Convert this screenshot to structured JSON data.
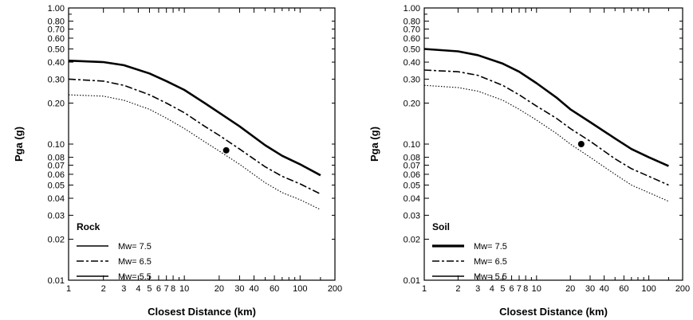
{
  "chart_data": [
    {
      "type": "line",
      "panel_label": "Rock",
      "xlabel": "Closest Distance (km)",
      "ylabel": "Pga (g)",
      "xscale": "log",
      "yscale": "log",
      "xlim": [
        1,
        200
      ],
      "ylim": [
        0.01,
        1.0
      ],
      "x_ticks": [
        1,
        2,
        3,
        4,
        5,
        6,
        7,
        8,
        10,
        20,
        30,
        40,
        60,
        100,
        200
      ],
      "x_tick_labels": [
        "1",
        "2",
        "3",
        "4",
        "5",
        "6",
        "7",
        "8",
        "10",
        "20",
        "30",
        "40",
        "60",
        "100",
        "200"
      ],
      "y_ticks": [
        0.01,
        0.02,
        0.03,
        0.04,
        0.05,
        0.06,
        0.07,
        0.08,
        0.1,
        0.2,
        0.3,
        0.4,
        0.5,
        0.6,
        0.7,
        0.8,
        1.0
      ],
      "y_tick_labels": [
        "0.01",
        "0.02",
        "0.03",
        "0.04",
        "0.05",
        "0.06",
        "0.07",
        "0.08",
        "0.10",
        "0.20",
        "0.30",
        "0.40",
        "0.50",
        "0.60",
        "0.70",
        "0.80",
        "1.00"
      ],
      "legend_position": "bottom-left",
      "series": [
        {
          "name": "Mw= 7.5",
          "style": "solid-thick",
          "x": [
            1,
            2,
            3,
            5,
            7,
            10,
            15,
            20,
            30,
            50,
            70,
            100,
            150
          ],
          "y": [
            0.41,
            0.4,
            0.38,
            0.33,
            0.29,
            0.25,
            0.2,
            0.17,
            0.135,
            0.098,
            0.082,
            0.071,
            0.059
          ]
        },
        {
          "name": "Mw= 6.5",
          "style": "dashed",
          "x": [
            1,
            2,
            3,
            5,
            7,
            10,
            15,
            20,
            30,
            50,
            70,
            100,
            150
          ],
          "y": [
            0.3,
            0.29,
            0.27,
            0.23,
            0.2,
            0.17,
            0.135,
            0.116,
            0.092,
            0.068,
            0.058,
            0.051,
            0.043
          ]
        },
        {
          "name": "Mw= 5.5",
          "style": "dotted",
          "x": [
            1,
            2,
            3,
            5,
            7,
            10,
            15,
            20,
            30,
            50,
            70,
            100,
            150
          ],
          "y": [
            0.23,
            0.225,
            0.21,
            0.18,
            0.155,
            0.13,
            0.104,
            0.089,
            0.071,
            0.052,
            0.044,
            0.039,
            0.033
          ]
        }
      ],
      "points": [
        {
          "x": 23,
          "y": 0.09
        }
      ]
    },
    {
      "type": "line",
      "panel_label": "Soil",
      "xlabel": "Closest Distance (km)",
      "ylabel": "Pga (g)",
      "xscale": "log",
      "yscale": "log",
      "xlim": [
        1,
        200
      ],
      "ylim": [
        0.01,
        1.0
      ],
      "x_ticks": [
        1,
        2,
        3,
        4,
        5,
        6,
        7,
        8,
        10,
        20,
        30,
        40,
        60,
        100,
        200
      ],
      "x_tick_labels": [
        "1",
        "2",
        "3",
        "4",
        "5",
        "6",
        "7",
        "8",
        "10",
        "20",
        "30",
        "40",
        "60",
        "100",
        "200"
      ],
      "y_ticks": [
        0.01,
        0.02,
        0.03,
        0.04,
        0.05,
        0.06,
        0.07,
        0.08,
        0.1,
        0.2,
        0.3,
        0.4,
        0.5,
        0.6,
        0.7,
        0.8,
        1.0
      ],
      "y_tick_labels": [
        "0.01",
        "0.02",
        "0.03",
        "0.04",
        "0.05",
        "0.06",
        "0.07",
        "0.08",
        "0.10",
        "0.20",
        "0.30",
        "0.40",
        "0.50",
        "0.60",
        "0.70",
        "0.80",
        "1.00"
      ],
      "legend_position": "bottom-left",
      "series": [
        {
          "name": "Mw= 7.5",
          "style": "solid-thick",
          "x": [
            1,
            2,
            3,
            5,
            7,
            10,
            15,
            20,
            30,
            50,
            70,
            100,
            150
          ],
          "y": [
            0.5,
            0.48,
            0.45,
            0.39,
            0.34,
            0.28,
            0.22,
            0.18,
            0.145,
            0.11,
            0.092,
            0.08,
            0.069
          ]
        },
        {
          "name": "Mw= 6.5",
          "style": "dashed",
          "x": [
            1,
            2,
            3,
            5,
            7,
            10,
            15,
            20,
            30,
            50,
            70,
            100,
            150
          ],
          "y": [
            0.35,
            0.34,
            0.32,
            0.27,
            0.23,
            0.19,
            0.155,
            0.13,
            0.105,
            0.078,
            0.066,
            0.058,
            0.05
          ]
        },
        {
          "name": "Mw= 5.5",
          "style": "dotted",
          "x": [
            1,
            2,
            3,
            5,
            7,
            10,
            15,
            20,
            30,
            50,
            70,
            100,
            150
          ],
          "y": [
            0.27,
            0.26,
            0.245,
            0.21,
            0.18,
            0.15,
            0.12,
            0.1,
            0.08,
            0.06,
            0.05,
            0.044,
            0.038
          ]
        }
      ],
      "points": [
        {
          "x": 25,
          "y": 0.1
        }
      ]
    }
  ]
}
